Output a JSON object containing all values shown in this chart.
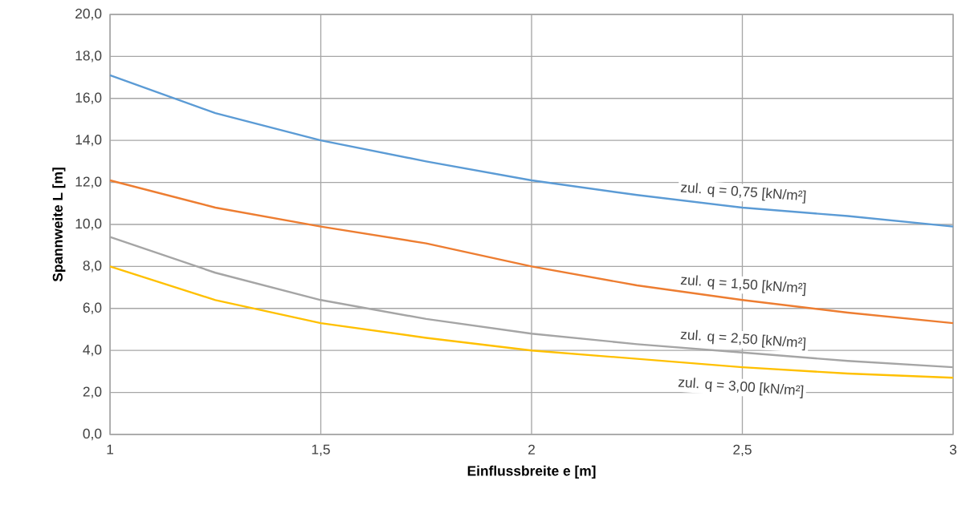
{
  "chart_data": {
    "type": "line",
    "xlabel": "Einflussbreite e [m]",
    "ylabel": "Spannweite L [m]",
    "x": [
      1,
      1.25,
      1.5,
      1.75,
      2,
      2.25,
      2.5,
      2.75,
      3
    ],
    "series": [
      {
        "color": "#5b9bd5",
        "values": [
          17.1,
          15.3,
          14.0,
          13.0,
          12.1,
          11.4,
          10.8,
          10.4,
          9.9
        ]
      },
      {
        "color": "#ed7d31",
        "values": [
          12.1,
          10.8,
          9.9,
          9.1,
          8.0,
          7.1,
          6.4,
          5.8,
          5.3
        ]
      },
      {
        "color": "#a5a5a5",
        "values": [
          9.4,
          7.7,
          6.4,
          5.5,
          4.8,
          4.3,
          3.9,
          3.5,
          3.2
        ]
      },
      {
        "color": "#ffc000",
        "values": [
          8.0,
          6.4,
          5.3,
          4.6,
          4.0,
          3.6,
          3.2,
          2.9,
          2.7
        ]
      }
    ],
    "annotations": [
      "zul. q = 0,75 [kN/m²]",
      "zul. q = 1,50 [kN/m²]",
      "zul. q = 2,50 [kN/m²]",
      "zul. q = 3,00 [kN/m²]"
    ],
    "xlim": [
      1,
      3
    ],
    "xticks": [
      1,
      {
        "value": 1.5,
        "label": "1,5"
      },
      2,
      {
        "value": 2.5,
        "label": "2,5"
      },
      3
    ],
    "ylim": [
      0,
      20
    ],
    "yticks": [
      {
        "value": 0,
        "label": "0,0"
      },
      {
        "value": 2,
        "label": "2,0"
      },
      {
        "value": 4,
        "label": "4,0"
      },
      {
        "value": 6,
        "label": "6,0"
      },
      {
        "value": 8,
        "label": "8,0"
      },
      {
        "value": 10,
        "label": "10,0"
      },
      {
        "value": 12,
        "label": "12,0"
      },
      {
        "value": 14,
        "label": "14,0"
      },
      {
        "value": 16,
        "label": "16,0"
      },
      {
        "value": 18,
        "label": "18,0"
      },
      {
        "value": 20,
        "label": "20,0"
      }
    ],
    "grid": true,
    "marker": "none",
    "line_style": "solid"
  }
}
